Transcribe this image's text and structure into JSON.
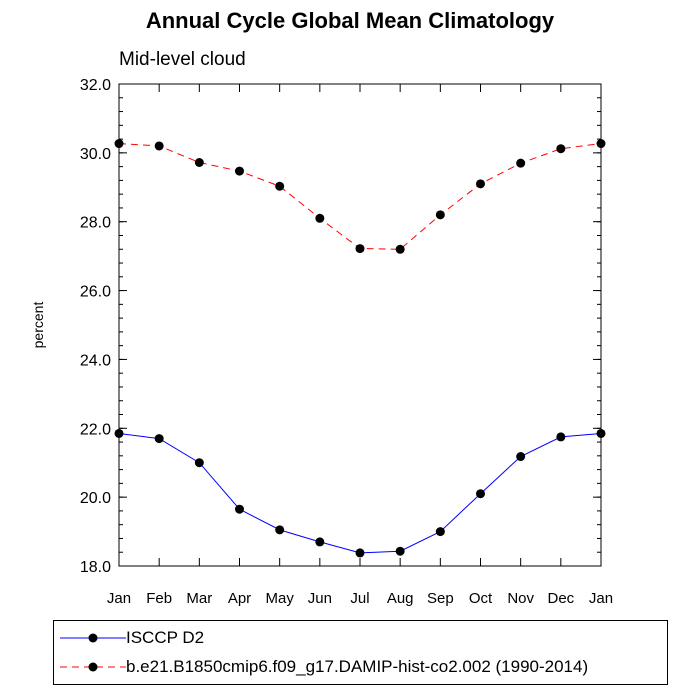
{
  "title": "Annual Cycle Global Mean Climatology",
  "subtitle": "Mid-level cloud",
  "chart_data": {
    "type": "line",
    "categories": [
      "Jan",
      "Feb",
      "Mar",
      "Apr",
      "May",
      "Jun",
      "Jul",
      "Aug",
      "Sep",
      "Oct",
      "Nov",
      "Dec",
      "Jan"
    ],
    "ylabel": "percent",
    "ylim": [
      18.0,
      32.0
    ],
    "yticks": [
      "18.0",
      "20.0",
      "22.0",
      "24.0",
      "26.0",
      "28.0",
      "30.0",
      "32.0"
    ],
    "series": [
      {
        "name": "ISCCP D2",
        "color": "#0000ff",
        "style": "solid",
        "values": [
          21.85,
          21.7,
          21.0,
          19.65,
          19.05,
          18.7,
          18.38,
          18.43,
          19.0,
          20.1,
          21.18,
          21.75,
          21.85
        ]
      },
      {
        "name": "b.e21.B1850cmip6.f09_g17.DAMIP-hist-co2.002 (1990-2014)",
        "color": "#ff0000",
        "style": "dashed",
        "values": [
          30.27,
          30.2,
          29.72,
          29.47,
          29.03,
          28.1,
          27.22,
          27.2,
          28.2,
          29.1,
          29.7,
          30.12,
          30.27
        ]
      }
    ]
  }
}
